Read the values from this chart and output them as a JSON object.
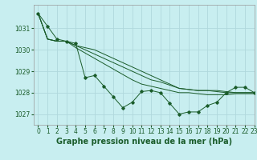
{
  "title": "Graphe pression niveau de la mer (hPa)",
  "background_color": "#c8eef0",
  "grid_color": "#b0d8dc",
  "line_color": "#1a5c2a",
  "xlim": [
    -0.5,
    23
  ],
  "ylim": [
    1026.5,
    1032.1
  ],
  "yticks": [
    1027,
    1028,
    1029,
    1030,
    1031
  ],
  "xticks": [
    0,
    1,
    2,
    3,
    4,
    5,
    6,
    7,
    8,
    9,
    10,
    11,
    12,
    13,
    14,
    15,
    16,
    17,
    18,
    19,
    20,
    21,
    22,
    23
  ],
  "series": [
    [
      1031.7,
      1031.1,
      1030.5,
      1030.4,
      1030.3,
      1028.7,
      1028.8,
      1028.3,
      1027.8,
      1027.3,
      1027.55,
      1028.05,
      1028.1,
      1028.0,
      1027.5,
      1027.0,
      1027.1,
      1027.1,
      1027.4,
      1027.55,
      1028.0,
      1028.25,
      1028.25,
      1028.0
    ],
    [
      1031.7,
      1030.5,
      1030.4,
      1030.4,
      1030.2,
      1030.1,
      1030.0,
      1029.8,
      1029.6,
      1029.4,
      1029.2,
      1029.0,
      1028.8,
      1028.6,
      1028.4,
      1028.2,
      1028.15,
      1028.1,
      1028.1,
      1028.1,
      1028.05,
      1028.0,
      1028.0,
      1028.0
    ],
    [
      1031.7,
      1030.5,
      1030.4,
      1030.4,
      1030.2,
      1030.0,
      1029.8,
      1029.6,
      1029.4,
      1029.2,
      1029.0,
      1028.8,
      1028.6,
      1028.5,
      1028.35,
      1028.2,
      1028.15,
      1028.1,
      1028.1,
      1028.05,
      1028.0,
      1028.0,
      1028.0,
      1028.0
    ],
    [
      1031.7,
      1030.5,
      1030.4,
      1030.4,
      1030.1,
      1029.85,
      1029.6,
      1029.35,
      1029.1,
      1028.85,
      1028.6,
      1028.4,
      1028.3,
      1028.2,
      1028.1,
      1028.0,
      1028.0,
      1027.95,
      1027.9,
      1027.9,
      1027.9,
      1027.95,
      1027.95,
      1027.95
    ]
  ],
  "title_fontsize": 7,
  "tick_fontsize": 5.5
}
